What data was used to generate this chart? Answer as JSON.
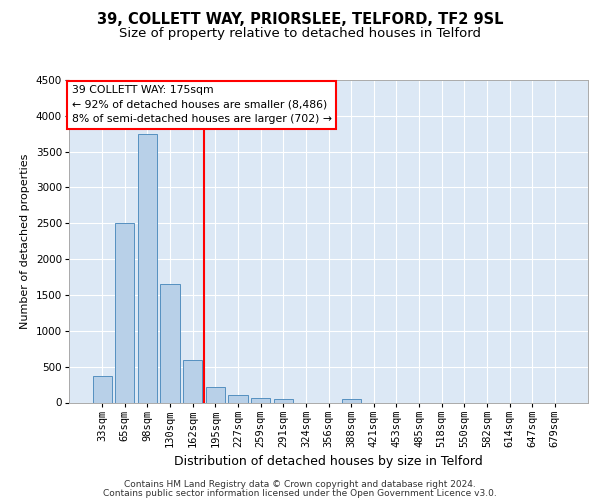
{
  "title": "39, COLLETT WAY, PRIORSLEE, TELFORD, TF2 9SL",
  "subtitle": "Size of property relative to detached houses in Telford",
  "xlabel": "Distribution of detached houses by size in Telford",
  "ylabel": "Number of detached properties",
  "categories": [
    "33sqm",
    "65sqm",
    "98sqm",
    "130sqm",
    "162sqm",
    "195sqm",
    "227sqm",
    "259sqm",
    "291sqm",
    "324sqm",
    "356sqm",
    "388sqm",
    "421sqm",
    "453sqm",
    "485sqm",
    "518sqm",
    "550sqm",
    "582sqm",
    "614sqm",
    "647sqm",
    "679sqm"
  ],
  "values": [
    370,
    2500,
    3750,
    1650,
    600,
    220,
    105,
    65,
    45,
    0,
    0,
    55,
    0,
    0,
    0,
    0,
    0,
    0,
    0,
    0,
    0
  ],
  "bar_color": "#b8d0e8",
  "bar_edge_color": "#5590c0",
  "red_line_x": 4.5,
  "annotation_line1": "39 COLLETT WAY: 175sqm",
  "annotation_line2": "← 92% of detached houses are smaller (8,486)",
  "annotation_line3": "8% of semi-detached houses are larger (702) →",
  "ylim": [
    0,
    4500
  ],
  "yticks": [
    0,
    500,
    1000,
    1500,
    2000,
    2500,
    3000,
    3500,
    4000,
    4500
  ],
  "footer1": "Contains HM Land Registry data © Crown copyright and database right 2024.",
  "footer2": "Contains public sector information licensed under the Open Government Licence v3.0.",
  "plot_bg_color": "#dce8f5",
  "grid_color": "#ffffff",
  "title_fontsize": 10.5,
  "subtitle_fontsize": 9.5,
  "ylabel_fontsize": 8,
  "xlabel_fontsize": 9,
  "tick_fontsize": 7.5,
  "footer_fontsize": 6.5,
  "annot_fontsize": 7.8
}
